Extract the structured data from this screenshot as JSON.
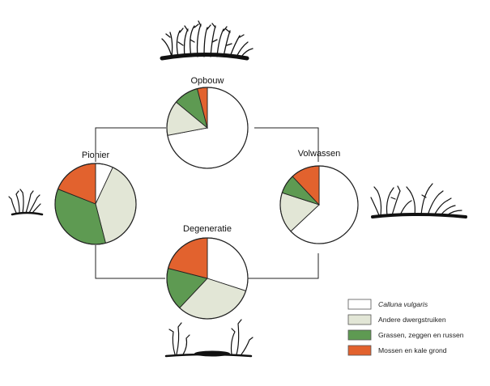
{
  "chart_data": {
    "type": "pie",
    "title": "",
    "series_names": [
      "Calluna vulgaris",
      "Andere dwergstruiken",
      "Grassen, zeggen en russen",
      "Mossen en kale grond"
    ],
    "colors": [
      "#ffffff",
      "#e2e6d6",
      "#5e9a52",
      "#e2622e"
    ],
    "charts": [
      {
        "id": "opbouw",
        "label": "Opbouw",
        "values": [
          72,
          14,
          10,
          4
        ]
      },
      {
        "id": "volwassen",
        "label": "Volwassen",
        "values": [
          63,
          17,
          8,
          12
        ]
      },
      {
        "id": "degeneratie",
        "label": "Degeneratie",
        "values": [
          30,
          32,
          17,
          21
        ]
      },
      {
        "id": "pionier",
        "label": "Pionier",
        "values": [
          7,
          39,
          35,
          19
        ]
      }
    ]
  },
  "legend": {
    "items": [
      {
        "label": "Calluna vulgaris",
        "italic": true,
        "color": "#ffffff"
      },
      {
        "label": "Andere dwergstruiken",
        "italic": false,
        "color": "#e2e6d6"
      },
      {
        "label": "Grassen, zeggen en russen",
        "italic": false,
        "color": "#5e9a52"
      },
      {
        "label": "Mossen en kale grond",
        "italic": false,
        "color": "#e2622e"
      }
    ]
  },
  "illustrations": [
    "heather-shrub-opbouw-icon",
    "heather-shrub-volwassen-icon",
    "heather-shrub-degeneratie-icon",
    "heather-shrub-pionier-icon"
  ]
}
